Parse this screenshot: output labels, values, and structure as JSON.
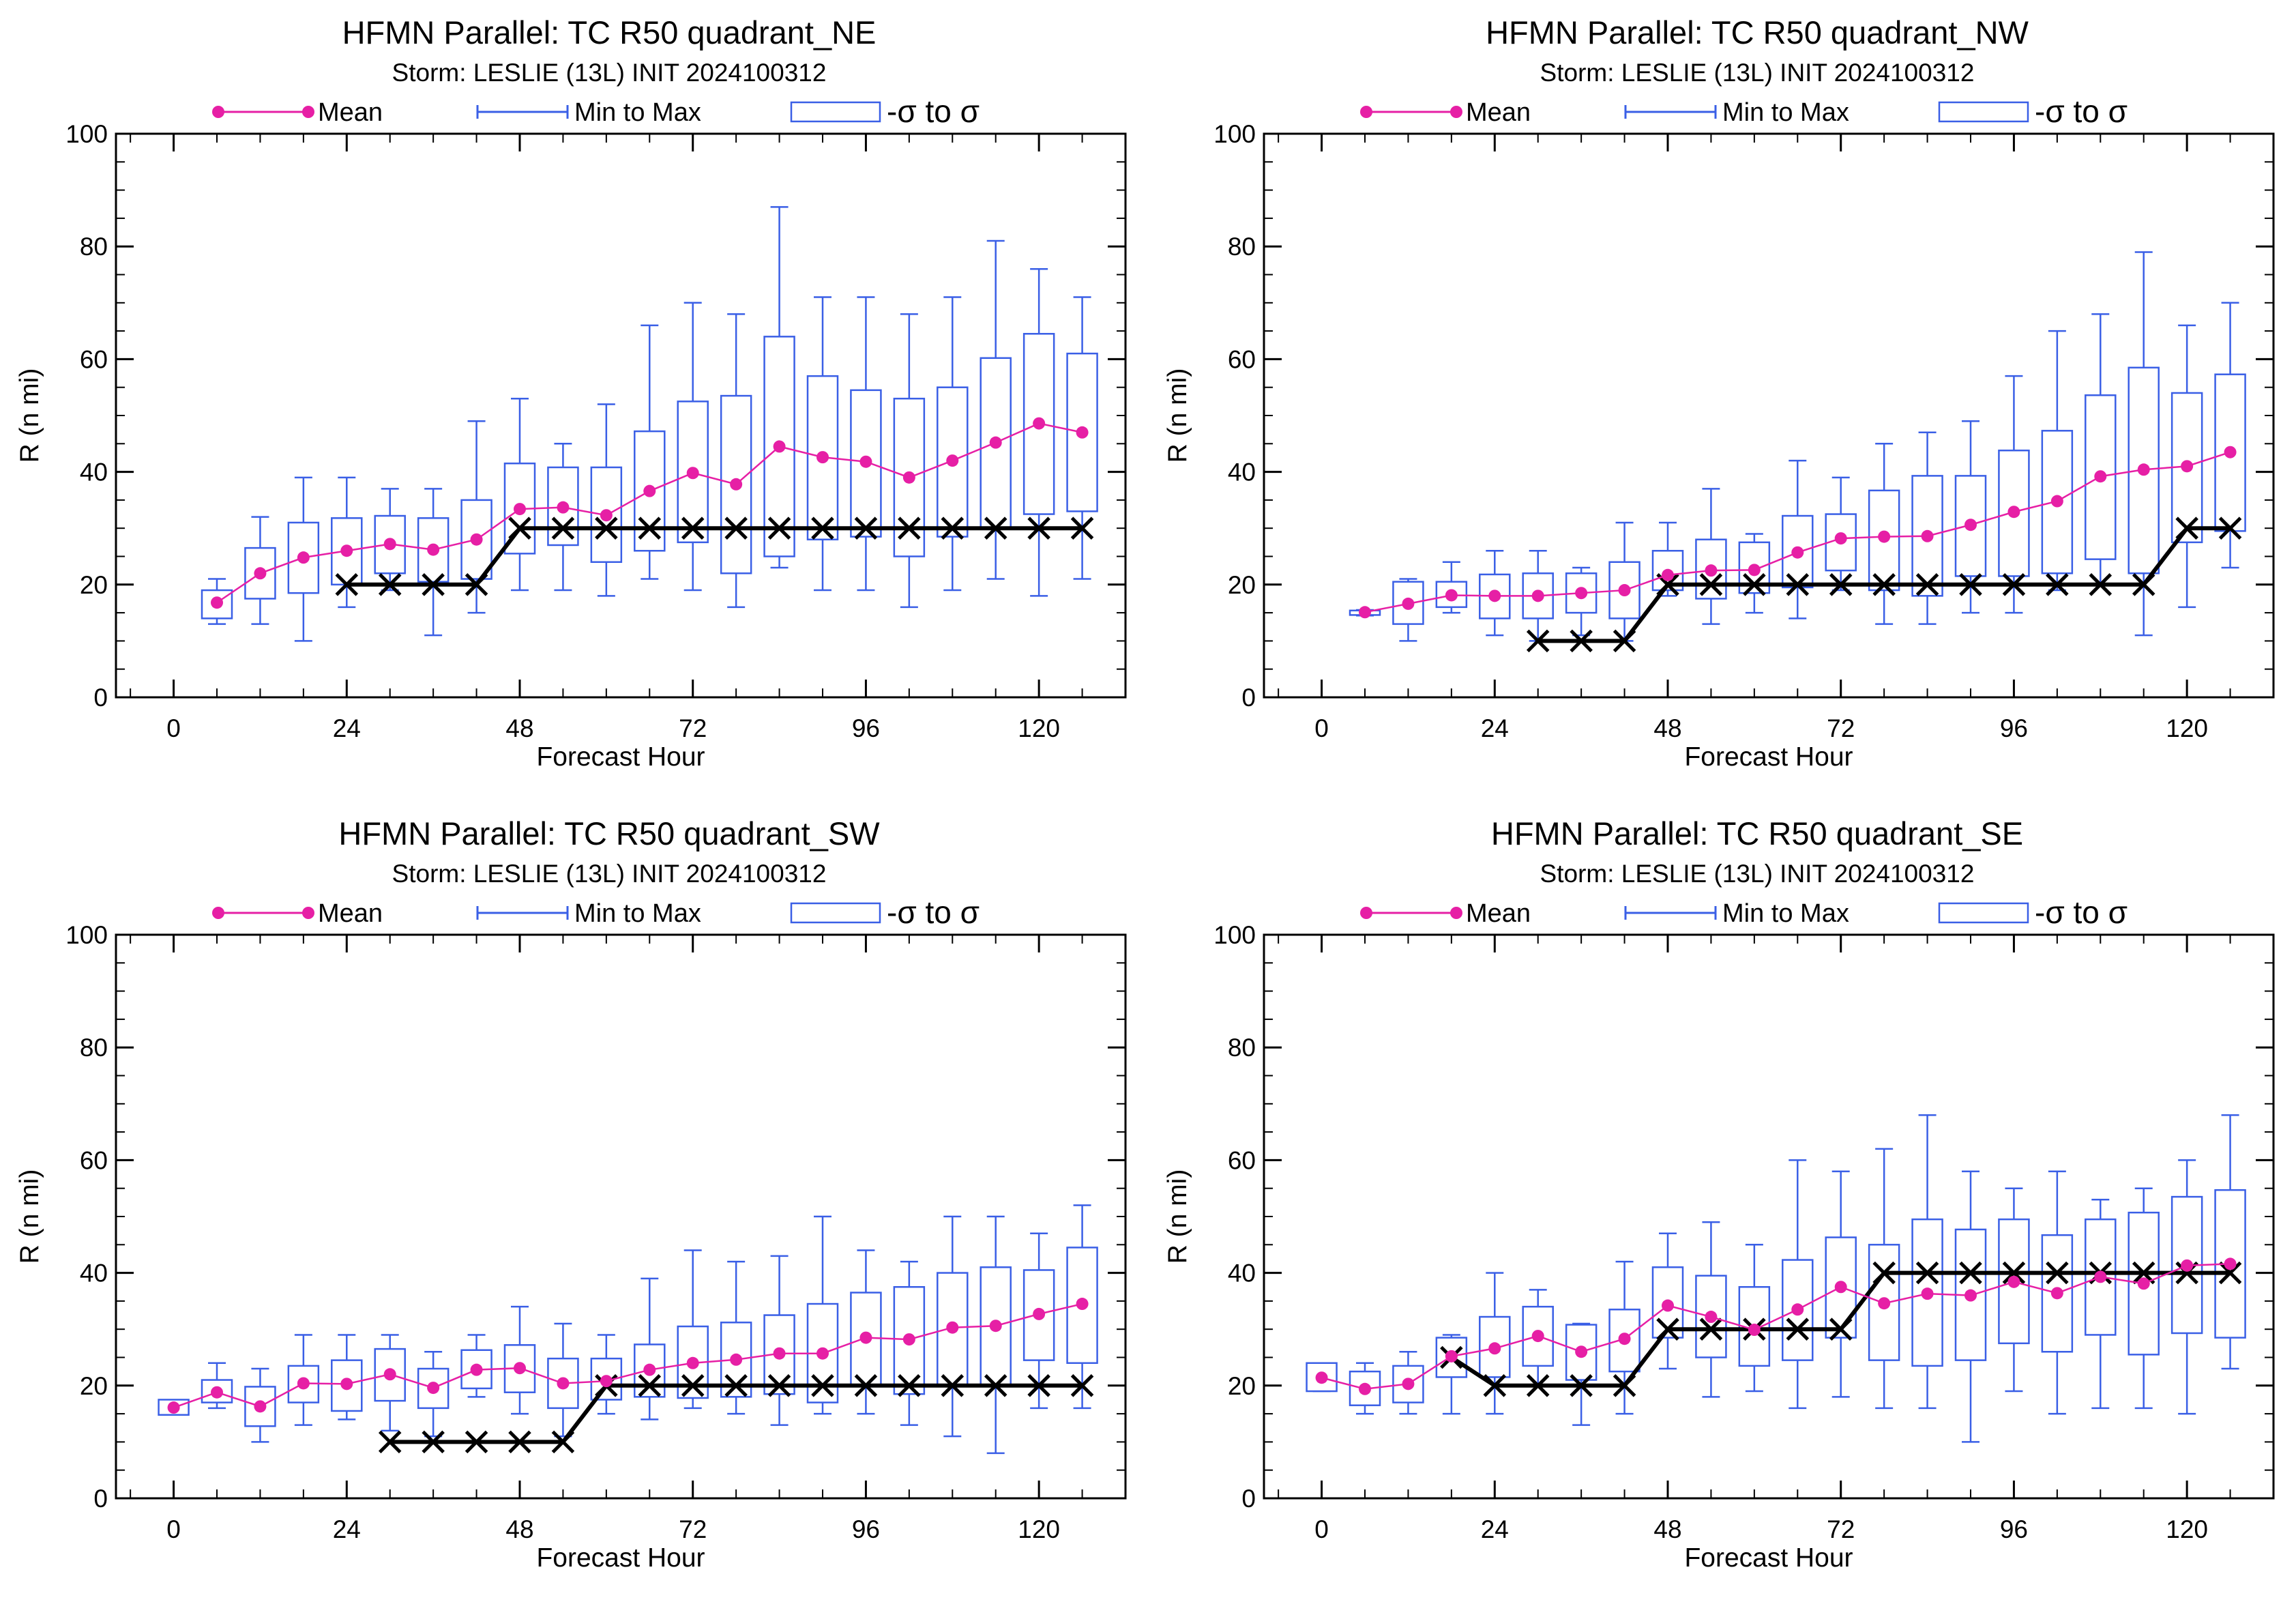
{
  "legend": {
    "mean": "Mean",
    "minmax": "Min to Max",
    "sigma": "-σ to σ"
  },
  "colors": {
    "mean": "#e61fa5",
    "box": "#3a5fe6",
    "obs": "#000000"
  },
  "chart_data": [
    {
      "type": "box",
      "title": "HFMN Parallel: TC  R50 quadrant_NE",
      "subtitle": "Storm: LESLIE (13L) INIT 2024100312",
      "xlabel": "Forecast Hour",
      "ylabel": "R (n mi)",
      "xlim": [
        -8,
        132
      ],
      "ylim": [
        0,
        100
      ],
      "xticks": [
        0,
        24,
        48,
        72,
        96,
        120
      ],
      "yticks": [
        0,
        20,
        40,
        60,
        80,
        100
      ],
      "ensemble": [
        {
          "x": 6,
          "min": 13,
          "max": 21,
          "lo": 14,
          "hi": 19,
          "mean": 16.8
        },
        {
          "x": 12,
          "min": 13,
          "max": 32,
          "lo": 17.5,
          "hi": 26.5,
          "mean": 22
        },
        {
          "x": 18,
          "min": 10,
          "max": 39,
          "lo": 18.5,
          "hi": 31,
          "mean": 24.8
        },
        {
          "x": 24,
          "min": 16,
          "max": 39,
          "lo": 20,
          "hi": 31.8,
          "mean": 26
        },
        {
          "x": 30,
          "min": 19,
          "max": 37,
          "lo": 22,
          "hi": 32.2,
          "mean": 27.2
        },
        {
          "x": 36,
          "min": 11,
          "max": 37,
          "lo": 20.5,
          "hi": 31.8,
          "mean": 26.2
        },
        {
          "x": 42,
          "min": 15,
          "max": 49,
          "lo": 21,
          "hi": 35,
          "mean": 28
        },
        {
          "x": 48,
          "min": 19,
          "max": 53,
          "lo": 25.5,
          "hi": 41.5,
          "mean": 33.4
        },
        {
          "x": 54,
          "min": 19,
          "max": 45,
          "lo": 27,
          "hi": 40.8,
          "mean": 33.7
        },
        {
          "x": 60,
          "min": 18,
          "max": 52,
          "lo": 24,
          "hi": 40.8,
          "mean": 32.3
        },
        {
          "x": 66,
          "min": 21,
          "max": 66,
          "lo": 26,
          "hi": 47.2,
          "mean": 36.6
        },
        {
          "x": 72,
          "min": 19,
          "max": 70,
          "lo": 27.5,
          "hi": 52.5,
          "mean": 39.8
        },
        {
          "x": 78,
          "min": 16,
          "max": 68,
          "lo": 22,
          "hi": 53.5,
          "mean": 37.8
        },
        {
          "x": 84,
          "min": 23,
          "max": 87,
          "lo": 25,
          "hi": 64,
          "mean": 44.5
        },
        {
          "x": 90,
          "min": 19,
          "max": 71,
          "lo": 28,
          "hi": 57,
          "mean": 42.6
        },
        {
          "x": 96,
          "min": 19,
          "max": 71,
          "lo": 28.5,
          "hi": 54.5,
          "mean": 41.8
        },
        {
          "x": 102,
          "min": 16,
          "max": 68,
          "lo": 25,
          "hi": 53,
          "mean": 39
        },
        {
          "x": 108,
          "min": 19,
          "max": 71,
          "lo": 28.5,
          "hi": 55,
          "mean": 42
        },
        {
          "x": 114,
          "min": 21,
          "max": 81,
          "lo": 30,
          "hi": 60.2,
          "mean": 45.2
        },
        {
          "x": 120,
          "min": 18,
          "max": 76,
          "lo": 32.5,
          "hi": 64.5,
          "mean": 48.6
        },
        {
          "x": 126,
          "min": 21,
          "max": 71,
          "lo": 33,
          "hi": 61,
          "mean": 47
        }
      ],
      "observed": [
        {
          "x": 24,
          "y": 20
        },
        {
          "x": 30,
          "y": 20
        },
        {
          "x": 36,
          "y": 20
        },
        {
          "x": 42,
          "y": 20
        },
        {
          "x": 48,
          "y": 30
        },
        {
          "x": 54,
          "y": 30
        },
        {
          "x": 60,
          "y": 30
        },
        {
          "x": 66,
          "y": 30
        },
        {
          "x": 72,
          "y": 30
        },
        {
          "x": 78,
          "y": 30
        },
        {
          "x": 84,
          "y": 30
        },
        {
          "x": 90,
          "y": 30
        },
        {
          "x": 96,
          "y": 30
        },
        {
          "x": 102,
          "y": 30
        },
        {
          "x": 108,
          "y": 30
        },
        {
          "x": 114,
          "y": 30
        },
        {
          "x": 120,
          "y": 30
        },
        {
          "x": 126,
          "y": 30
        }
      ]
    },
    {
      "type": "box",
      "title": "HFMN Parallel: TC  R50 quadrant_NW",
      "subtitle": "Storm: LESLIE (13L) INIT 2024100312",
      "xlabel": "Forecast Hour",
      "ylabel": "R (n mi)",
      "xlim": [
        -8,
        132
      ],
      "ylim": [
        0,
        100
      ],
      "xticks": [
        0,
        24,
        48,
        72,
        96,
        120
      ],
      "yticks": [
        0,
        20,
        40,
        60,
        80,
        100
      ],
      "ensemble": [
        {
          "x": 6,
          "min": 14.5,
          "max": 15.5,
          "lo": 14.6,
          "hi": 15.4,
          "mean": 15.1
        },
        {
          "x": 12,
          "min": 10,
          "max": 21,
          "lo": 13,
          "hi": 20.5,
          "mean": 16.6
        },
        {
          "x": 18,
          "min": 15,
          "max": 24,
          "lo": 16,
          "hi": 20.5,
          "mean": 18.1
        },
        {
          "x": 24,
          "min": 11,
          "max": 26,
          "lo": 14,
          "hi": 21.8,
          "mean": 18
        },
        {
          "x": 30,
          "min": 10,
          "max": 26,
          "lo": 14,
          "hi": 22,
          "mean": 18
        },
        {
          "x": 36,
          "min": 11,
          "max": 23,
          "lo": 15,
          "hi": 22,
          "mean": 18.5
        },
        {
          "x": 42,
          "min": 10,
          "max": 31,
          "lo": 14,
          "hi": 24,
          "mean": 19
        },
        {
          "x": 48,
          "min": 18,
          "max": 31,
          "lo": 19,
          "hi": 26,
          "mean": 21.7
        },
        {
          "x": 54,
          "min": 13,
          "max": 37,
          "lo": 17.5,
          "hi": 28,
          "mean": 22.5
        },
        {
          "x": 60,
          "min": 15,
          "max": 29,
          "lo": 18.5,
          "hi": 27.5,
          "mean": 22.6
        },
        {
          "x": 66,
          "min": 14,
          "max": 42,
          "lo": 19.5,
          "hi": 32.2,
          "mean": 25.7
        },
        {
          "x": 72,
          "min": 19,
          "max": 39,
          "lo": 22.5,
          "hi": 32.5,
          "mean": 28.2
        },
        {
          "x": 78,
          "min": 13,
          "max": 45,
          "lo": 19,
          "hi": 36.7,
          "mean": 28.5
        },
        {
          "x": 84,
          "min": 13,
          "max": 47,
          "lo": 18,
          "hi": 39.3,
          "mean": 28.6
        },
        {
          "x": 90,
          "min": 15,
          "max": 49,
          "lo": 21.5,
          "hi": 39.3,
          "mean": 30.6
        },
        {
          "x": 96,
          "min": 15,
          "max": 57,
          "lo": 21.5,
          "hi": 43.8,
          "mean": 32.9
        },
        {
          "x": 102,
          "min": 19,
          "max": 65,
          "lo": 22,
          "hi": 47.3,
          "mean": 34.8
        },
        {
          "x": 108,
          "min": 20,
          "max": 68,
          "lo": 24.5,
          "hi": 53.6,
          "mean": 39.2
        },
        {
          "x": 114,
          "min": 11,
          "max": 79,
          "lo": 22,
          "hi": 58.5,
          "mean": 40.4
        },
        {
          "x": 120,
          "min": 16,
          "max": 66,
          "lo": 27.5,
          "hi": 54,
          "mean": 41
        },
        {
          "x": 126,
          "min": 23,
          "max": 70,
          "lo": 29.5,
          "hi": 57.3,
          "mean": 43.5
        }
      ],
      "observed": [
        {
          "x": 30,
          "y": 10
        },
        {
          "x": 36,
          "y": 10
        },
        {
          "x": 42,
          "y": 10
        },
        {
          "x": 48,
          "y": 20
        },
        {
          "x": 54,
          "y": 20
        },
        {
          "x": 60,
          "y": 20
        },
        {
          "x": 66,
          "y": 20
        },
        {
          "x": 72,
          "y": 20
        },
        {
          "x": 78,
          "y": 20
        },
        {
          "x": 84,
          "y": 20
        },
        {
          "x": 90,
          "y": 20
        },
        {
          "x": 96,
          "y": 20
        },
        {
          "x": 102,
          "y": 20
        },
        {
          "x": 108,
          "y": 20
        },
        {
          "x": 114,
          "y": 20
        },
        {
          "x": 120,
          "y": 30
        },
        {
          "x": 126,
          "y": 30
        }
      ]
    },
    {
      "type": "box",
      "title": "HFMN Parallel: TC  R50 quadrant_SW",
      "subtitle": "Storm: LESLIE (13L) INIT 2024100312",
      "xlabel": "Forecast Hour",
      "ylabel": "R (n mi)",
      "xlim": [
        -8,
        132
      ],
      "ylim": [
        0,
        100
      ],
      "xticks": [
        0,
        24,
        48,
        72,
        96,
        120
      ],
      "yticks": [
        0,
        20,
        40,
        60,
        80,
        100
      ],
      "ensemble": [
        {
          "x": 0,
          "min": 15,
          "max": 17,
          "lo": 14.8,
          "hi": 17.5,
          "mean": 16.1
        },
        {
          "x": 6,
          "min": 16,
          "max": 24,
          "lo": 17,
          "hi": 21,
          "mean": 18.8
        },
        {
          "x": 12,
          "min": 10,
          "max": 23,
          "lo": 12.8,
          "hi": 19.8,
          "mean": 16.3
        },
        {
          "x": 18,
          "min": 13,
          "max": 29,
          "lo": 17,
          "hi": 23.5,
          "mean": 20.4
        },
        {
          "x": 24,
          "min": 14,
          "max": 29,
          "lo": 15.5,
          "hi": 24.5,
          "mean": 20.3
        },
        {
          "x": 30,
          "min": 12,
          "max": 29,
          "lo": 17.3,
          "hi": 26.5,
          "mean": 22
        },
        {
          "x": 36,
          "min": 11,
          "max": 26,
          "lo": 16,
          "hi": 23,
          "mean": 19.6
        },
        {
          "x": 42,
          "min": 18,
          "max": 29,
          "lo": 19.5,
          "hi": 26.3,
          "mean": 22.8
        },
        {
          "x": 48,
          "min": 15,
          "max": 34,
          "lo": 18.8,
          "hi": 27.2,
          "mean": 23.1
        },
        {
          "x": 54,
          "min": 11,
          "max": 31,
          "lo": 16,
          "hi": 24.8,
          "mean": 20.4
        },
        {
          "x": 60,
          "min": 15,
          "max": 29,
          "lo": 17.5,
          "hi": 24.8,
          "mean": 20.8
        },
        {
          "x": 66,
          "min": 14,
          "max": 39,
          "lo": 18,
          "hi": 27.3,
          "mean": 22.8
        },
        {
          "x": 72,
          "min": 16,
          "max": 44,
          "lo": 17.8,
          "hi": 30.5,
          "mean": 24
        },
        {
          "x": 78,
          "min": 15,
          "max": 42,
          "lo": 18,
          "hi": 31.2,
          "mean": 24.6
        },
        {
          "x": 84,
          "min": 13,
          "max": 43,
          "lo": 18.5,
          "hi": 32.5,
          "mean": 25.7
        },
        {
          "x": 90,
          "min": 15,
          "max": 50,
          "lo": 17,
          "hi": 34.5,
          "mean": 25.7
        },
        {
          "x": 96,
          "min": 15,
          "max": 44,
          "lo": 20,
          "hi": 36.5,
          "mean": 28.5
        },
        {
          "x": 102,
          "min": 13,
          "max": 42,
          "lo": 18.5,
          "hi": 37.5,
          "mean": 28.2
        },
        {
          "x": 108,
          "min": 11,
          "max": 50,
          "lo": 20,
          "hi": 40,
          "mean": 30.3
        },
        {
          "x": 114,
          "min": 8,
          "max": 50,
          "lo": 20,
          "hi": 41,
          "mean": 30.6
        },
        {
          "x": 120,
          "min": 16,
          "max": 47,
          "lo": 24.5,
          "hi": 40.5,
          "mean": 32.7
        },
        {
          "x": 126,
          "min": 16,
          "max": 52,
          "lo": 24,
          "hi": 44.5,
          "mean": 34.5
        }
      ],
      "observed": [
        {
          "x": 30,
          "y": 10
        },
        {
          "x": 36,
          "y": 10
        },
        {
          "x": 42,
          "y": 10
        },
        {
          "x": 48,
          "y": 10
        },
        {
          "x": 54,
          "y": 10
        },
        {
          "x": 60,
          "y": 20
        },
        {
          "x": 66,
          "y": 20
        },
        {
          "x": 72,
          "y": 20
        },
        {
          "x": 78,
          "y": 20
        },
        {
          "x": 84,
          "y": 20
        },
        {
          "x": 90,
          "y": 20
        },
        {
          "x": 96,
          "y": 20
        },
        {
          "x": 102,
          "y": 20
        },
        {
          "x": 108,
          "y": 20
        },
        {
          "x": 114,
          "y": 20
        },
        {
          "x": 120,
          "y": 20
        },
        {
          "x": 126,
          "y": 20
        }
      ]
    },
    {
      "type": "box",
      "title": "HFMN Parallel: TC  R50 quadrant_SE",
      "subtitle": "Storm: LESLIE (13L) INIT 2024100312",
      "xlabel": "Forecast Hour",
      "ylabel": "R (n mi)",
      "xlim": [
        -8,
        132
      ],
      "ylim": [
        0,
        100
      ],
      "xticks": [
        0,
        24,
        48,
        72,
        96,
        120
      ],
      "yticks": [
        0,
        20,
        40,
        60,
        80,
        100
      ],
      "ensemble": [
        {
          "x": 0,
          "min": 19,
          "max": 24,
          "lo": 19,
          "hi": 24,
          "mean": 21.4
        },
        {
          "x": 6,
          "min": 15,
          "max": 24,
          "lo": 16.5,
          "hi": 22.5,
          "mean": 19.4
        },
        {
          "x": 12,
          "min": 15,
          "max": 26,
          "lo": 17,
          "hi": 23.5,
          "mean": 20.3
        },
        {
          "x": 18,
          "min": 15,
          "max": 29,
          "lo": 21.5,
          "hi": 28.5,
          "mean": 25.2
        },
        {
          "x": 24,
          "min": 15,
          "max": 40,
          "lo": 21.5,
          "hi": 32.2,
          "mean": 26.6
        },
        {
          "x": 30,
          "min": 20,
          "max": 37,
          "lo": 23.5,
          "hi": 34,
          "mean": 28.8
        },
        {
          "x": 36,
          "min": 13,
          "max": 31,
          "lo": 21,
          "hi": 30.8,
          "mean": 26
        },
        {
          "x": 42,
          "min": 15,
          "max": 42,
          "lo": 22.5,
          "hi": 33.5,
          "mean": 28.3
        },
        {
          "x": 48,
          "min": 23,
          "max": 47,
          "lo": 28.5,
          "hi": 41,
          "mean": 34.2
        },
        {
          "x": 54,
          "min": 18,
          "max": 49,
          "lo": 25,
          "hi": 39.5,
          "mean": 32.2
        },
        {
          "x": 60,
          "min": 19,
          "max": 45,
          "lo": 23.5,
          "hi": 37.5,
          "mean": 29.9
        },
        {
          "x": 66,
          "min": 16,
          "max": 60,
          "lo": 24.5,
          "hi": 42.3,
          "mean": 33.5
        },
        {
          "x": 72,
          "min": 18,
          "max": 58,
          "lo": 28.5,
          "hi": 46.3,
          "mean": 37.5
        },
        {
          "x": 78,
          "min": 16,
          "max": 62,
          "lo": 24.5,
          "hi": 45,
          "mean": 34.6
        },
        {
          "x": 84,
          "min": 16,
          "max": 68,
          "lo": 23.5,
          "hi": 49.5,
          "mean": 36.3
        },
        {
          "x": 90,
          "min": 10,
          "max": 58,
          "lo": 24.5,
          "hi": 47.7,
          "mean": 36
        },
        {
          "x": 96,
          "min": 19,
          "max": 55,
          "lo": 27.5,
          "hi": 49.5,
          "mean": 38.4
        },
        {
          "x": 102,
          "min": 15,
          "max": 58,
          "lo": 26,
          "hi": 46.7,
          "mean": 36.4
        },
        {
          "x": 108,
          "min": 16,
          "max": 53,
          "lo": 29,
          "hi": 49.5,
          "mean": 39.3
        },
        {
          "x": 114,
          "min": 16,
          "max": 55,
          "lo": 25.5,
          "hi": 50.7,
          "mean": 38.1
        },
        {
          "x": 120,
          "min": 15,
          "max": 60,
          "lo": 29.3,
          "hi": 53.5,
          "mean": 41.3
        },
        {
          "x": 126,
          "min": 23,
          "max": 68,
          "lo": 28.5,
          "hi": 54.7,
          "mean": 41.6
        }
      ],
      "observed": [
        {
          "x": 18,
          "y": 25
        },
        {
          "x": 24,
          "y": 20
        },
        {
          "x": 30,
          "y": 20
        },
        {
          "x": 36,
          "y": 20
        },
        {
          "x": 42,
          "y": 20
        },
        {
          "x": 48,
          "y": 30
        },
        {
          "x": 54,
          "y": 30
        },
        {
          "x": 60,
          "y": 30
        },
        {
          "x": 66,
          "y": 30
        },
        {
          "x": 72,
          "y": 30
        },
        {
          "x": 78,
          "y": 40
        },
        {
          "x": 84,
          "y": 40
        },
        {
          "x": 90,
          "y": 40
        },
        {
          "x": 96,
          "y": 40
        },
        {
          "x": 102,
          "y": 40
        },
        {
          "x": 108,
          "y": 40
        },
        {
          "x": 114,
          "y": 40
        },
        {
          "x": 120,
          "y": 40
        },
        {
          "x": 126,
          "y": 40
        }
      ]
    }
  ]
}
